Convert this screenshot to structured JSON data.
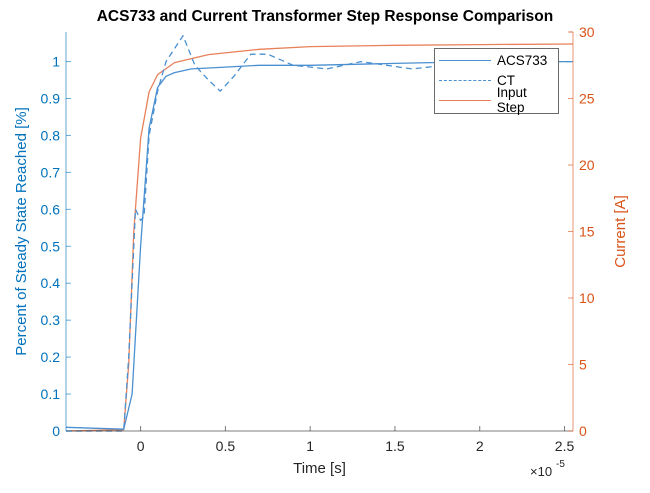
{
  "chart_data": {
    "type": "line",
    "title": "ACS733 and Current Transformer Step Response Comparison",
    "xlabel": "Time [s]",
    "x_exponent_label": "×10",
    "x_exponent": "-5",
    "ylabel_left": "Percent of Steady State Reached [%]",
    "ylabel_right": "Current [A]",
    "xlim": [
      -0.44,
      2.55
    ],
    "ylim_left": [
      0,
      1.08
    ],
    "ylim_right": [
      0,
      30
    ],
    "x_ticks": [
      "0",
      "0.5",
      "1",
      "1.5",
      "2",
      "2.5"
    ],
    "y_left_ticks": [
      "0",
      "0.1",
      "0.2",
      "0.3",
      "0.4",
      "0.5",
      "0.6",
      "0.7",
      "0.8",
      "0.9",
      "1"
    ],
    "y_right_ticks": [
      "0",
      "5",
      "10",
      "15",
      "20",
      "25",
      "30"
    ],
    "legend_position": "northeast",
    "grid": false,
    "colors": {
      "left_axis": "#0072BD",
      "right_axis": "#D95319",
      "acs733": "#4A90D0",
      "ct": "#4A90D0",
      "input_step": "#E8805A"
    },
    "series": [
      {
        "name": "ACS733",
        "axis": "left",
        "style": "solid",
        "x": [
          -0.44,
          -0.1,
          -0.05,
          0.0,
          0.05,
          0.1,
          0.15,
          0.2,
          0.3,
          0.5,
          0.7,
          1.0,
          1.5,
          2.0,
          2.55
        ],
        "y": [
          0.01,
          0.005,
          0.1,
          0.5,
          0.82,
          0.93,
          0.96,
          0.97,
          0.98,
          0.985,
          0.99,
          0.99,
          0.995,
          1.0,
          1.0
        ]
      },
      {
        "name": "CT",
        "axis": "left",
        "style": "dashed",
        "x": [
          -0.44,
          -0.1,
          -0.07,
          -0.03,
          0.0,
          0.02,
          0.05,
          0.1,
          0.15,
          0.25,
          0.32,
          0.4,
          0.47,
          0.55,
          0.65,
          0.75,
          0.9,
          1.1,
          1.3,
          1.6,
          2.0,
          2.55
        ],
        "y": [
          0.0,
          0.0,
          0.2,
          0.6,
          0.57,
          0.58,
          0.8,
          0.92,
          1.0,
          1.07,
          0.99,
          0.95,
          0.92,
          0.96,
          1.02,
          1.02,
          0.99,
          0.98,
          1.0,
          0.98,
          1.0,
          1.0
        ]
      },
      {
        "name": "Input Step",
        "axis": "right",
        "style": "solid",
        "x": [
          -0.44,
          -0.1,
          -0.07,
          -0.04,
          0.0,
          0.05,
          0.1,
          0.2,
          0.4,
          0.7,
          1.0,
          1.5,
          2.0,
          2.55
        ],
        "y": [
          0.0,
          0.1,
          5.0,
          15.0,
          22.0,
          25.5,
          26.8,
          27.7,
          28.3,
          28.7,
          28.9,
          29.0,
          29.05,
          29.1
        ]
      }
    ]
  },
  "legend": {
    "items": [
      {
        "label": "ACS733"
      },
      {
        "label": "CT"
      },
      {
        "label": "Input Step"
      }
    ]
  }
}
